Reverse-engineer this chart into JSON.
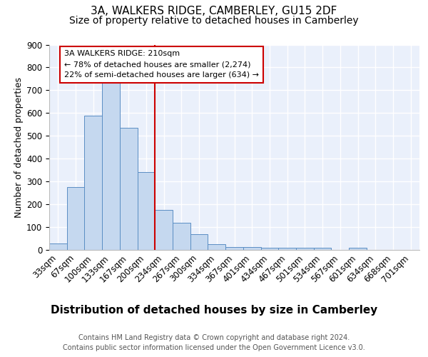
{
  "title1": "3A, WALKERS RIDGE, CAMBERLEY, GU15 2DF",
  "title2": "Size of property relative to detached houses in Camberley",
  "xlabel": "Distribution of detached houses by size in Camberley",
  "ylabel": "Number of detached properties",
  "bar_labels": [
    "33sqm",
    "67sqm",
    "100sqm",
    "133sqm",
    "167sqm",
    "200sqm",
    "234sqm",
    "267sqm",
    "300sqm",
    "334sqm",
    "367sqm",
    "401sqm",
    "434sqm",
    "467sqm",
    "501sqm",
    "534sqm",
    "567sqm",
    "601sqm",
    "634sqm",
    "668sqm",
    "701sqm"
  ],
  "bar_values": [
    27,
    275,
    590,
    740,
    535,
    340,
    175,
    120,
    68,
    25,
    13,
    13,
    10,
    10,
    10,
    10,
    0,
    10,
    0,
    0,
    0
  ],
  "bar_color": "#c5d8ef",
  "bar_edge_color": "#5b8ec4",
  "bg_color": "#eaf0fb",
  "grid_color": "#ffffff",
  "vline_x": 5.5,
  "vline_color": "#cc0000",
  "annotation_text": "3A WALKERS RIDGE: 210sqm\n← 78% of detached houses are smaller (2,274)\n22% of semi-detached houses are larger (634) →",
  "annotation_box_color": "#cc0000",
  "ylim": [
    0,
    900
  ],
  "yticks": [
    0,
    100,
    200,
    300,
    400,
    500,
    600,
    700,
    800,
    900
  ],
  "footer": "Contains HM Land Registry data © Crown copyright and database right 2024.\nContains public sector information licensed under the Open Government Licence v3.0.",
  "title1_fontsize": 11,
  "title2_fontsize": 10,
  "xlabel_fontsize": 11,
  "ylabel_fontsize": 9,
  "tick_fontsize": 8.5,
  "annotation_fontsize": 8,
  "footer_fontsize": 7
}
